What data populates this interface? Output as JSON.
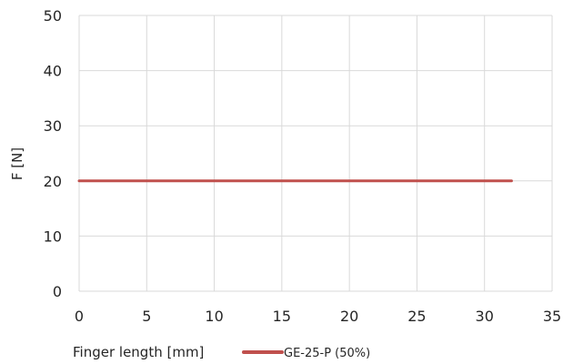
{
  "chart_data": {
    "type": "line",
    "xlabel": "Finger length [mm]",
    "ylabel": "F [N]",
    "xlim": [
      0,
      35
    ],
    "ylim": [
      0,
      50
    ],
    "x_ticks": [
      "0",
      "5",
      "10",
      "15",
      "20",
      "25",
      "30",
      "35"
    ],
    "y_ticks": [
      "0",
      "10",
      "20",
      "30",
      "40",
      "50"
    ],
    "grid": true,
    "legend_position": "bottom",
    "series": [
      {
        "name": "GE-25-P (50%)",
        "color": "#c0504d",
        "x": [
          0,
          32
        ],
        "y": [
          20,
          20
        ]
      }
    ]
  }
}
